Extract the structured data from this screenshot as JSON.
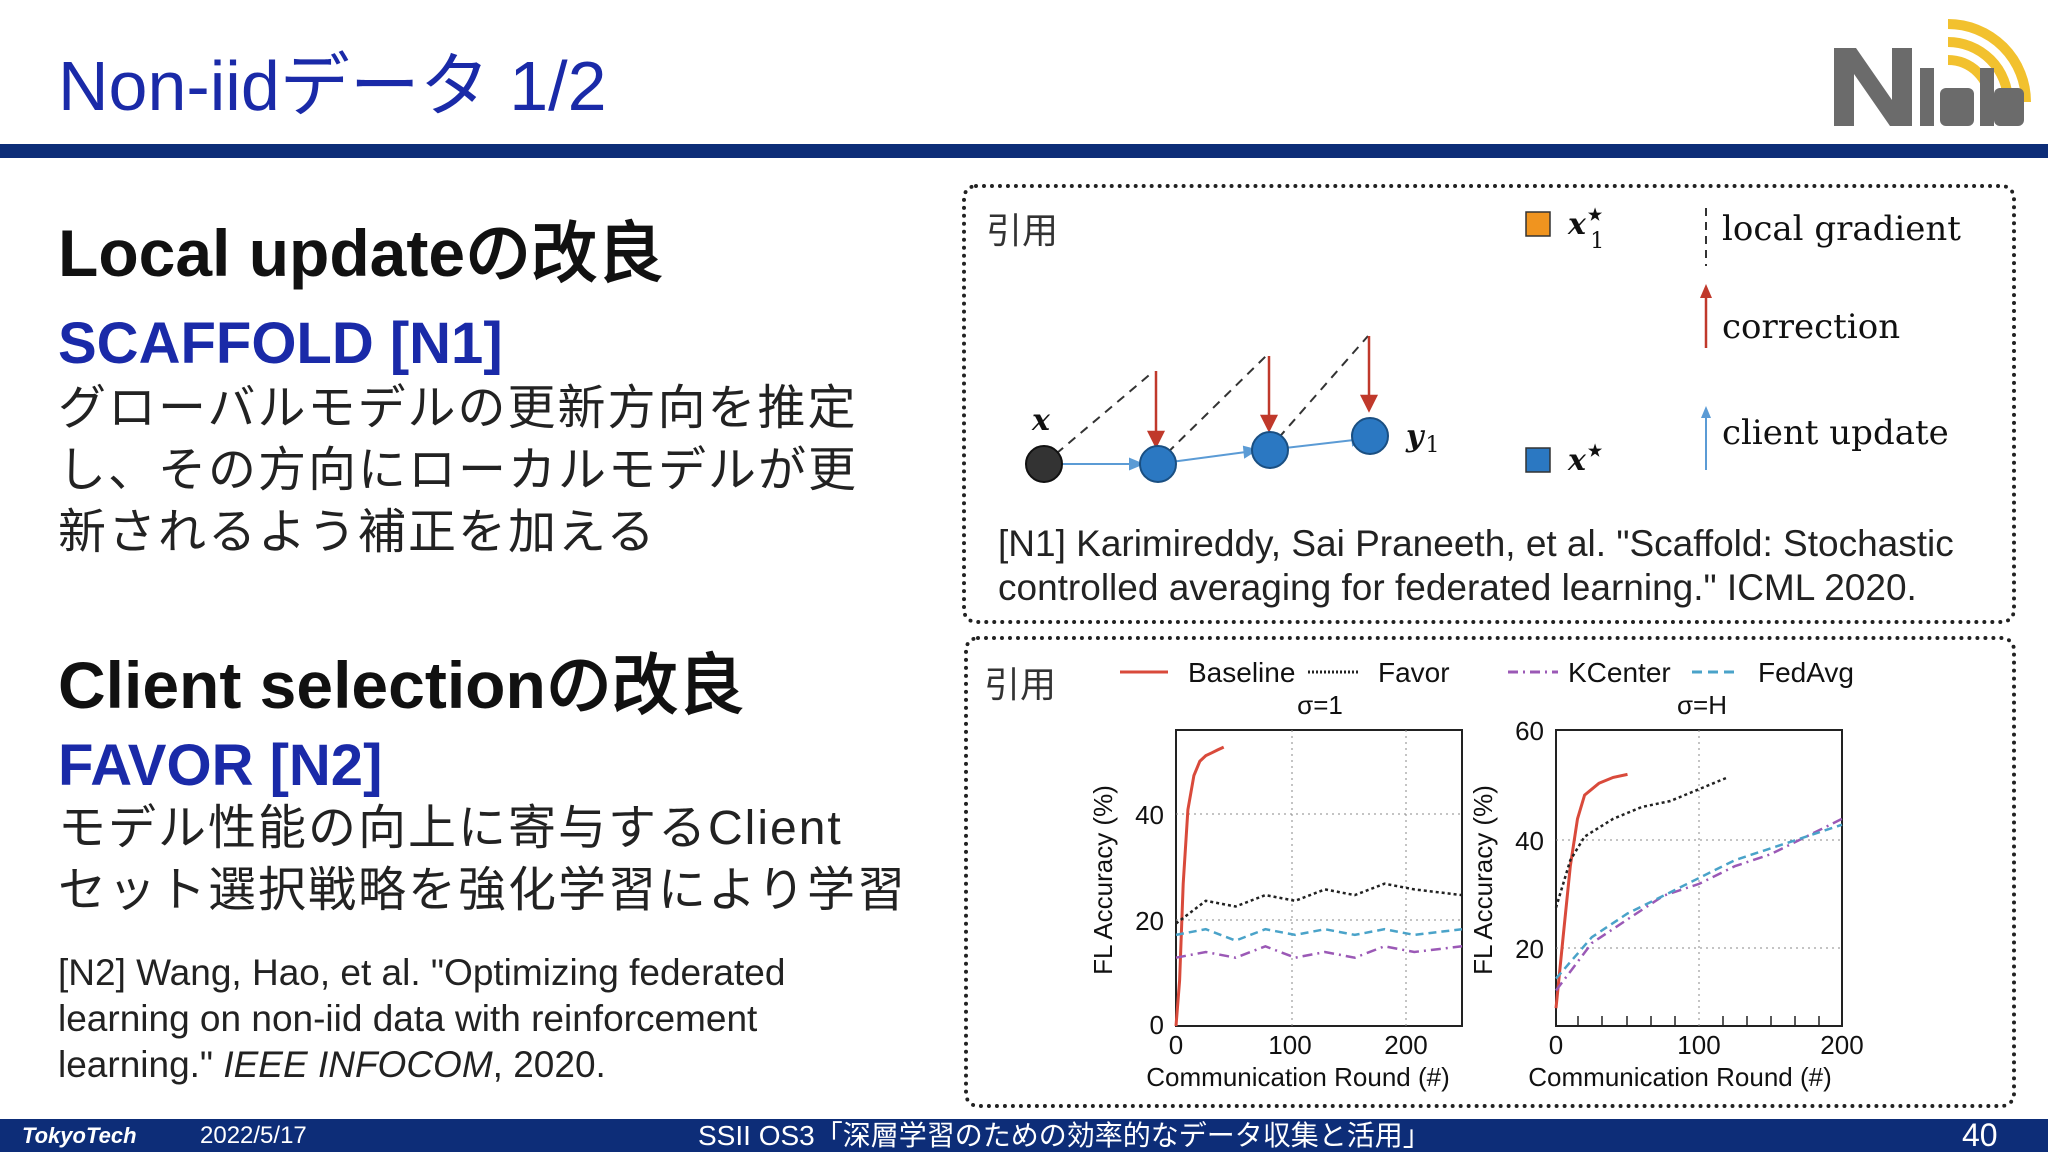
{
  "slide": {
    "title": "Non-iidデータ 1/2",
    "logo_text": "N lab"
  },
  "left": {
    "section1_heading": "Local updateの改良",
    "method1_title": "SCAFFOLD [N1]",
    "method1_desc": [
      "グローバルモデルの更新方向を推定",
      "し、その方向にローカルモデルが更",
      "新されるよう補正を加える"
    ],
    "section2_heading": "Client selectionの改良",
    "method2_title": "FAVOR [N2]",
    "method2_desc": [
      "モデル性能の向上に寄与するClient",
      "セット選択戦略を強化学習により学習"
    ],
    "ref_n2": [
      "[N2] Wang, Hao, et al. \"Optimizing federated",
      "learning on non-iid data with reinforcement"
    ],
    "ref_n2_line3_pre": "learning.\" ",
    "ref_n2_line3_venue": "IEEE INFOCOM",
    "ref_n2_line3_post": ", 2020."
  },
  "figure1": {
    "quote_label": "引用",
    "node_x": "x",
    "node_y1": "y",
    "node_y1_sub": "1",
    "legend": {
      "x1_star": "x",
      "x1_sub": "1",
      "x_star": "x",
      "star": "★",
      "local_gradient": "local gradient",
      "correction": "correction",
      "client_update": "client update"
    },
    "colors": {
      "orange": "#f0941f",
      "blue": "#2b78c2",
      "red": "#c0392b",
      "dark": "#333333"
    },
    "ref_n1": [
      "[N1] Karimireddy, Sai Praneeth, et al. \"Scaffold: Stochastic",
      "controlled averaging for federated learning.\" ICML 2020."
    ]
  },
  "figure2": {
    "quote_label": "引用",
    "legend": [
      "Baseline",
      "Favor",
      "KCenter",
      "FedAvg"
    ],
    "panel_left": {
      "title": "σ=1",
      "ylabel": "FL Accuracy (%)",
      "xlabel": "Communication Round (#)",
      "yticks": [
        "0",
        "20",
        "40"
      ],
      "xticks": [
        "0",
        "100",
        "200"
      ]
    },
    "panel_right": {
      "title": "σ=H",
      "ylabel": "FL Accuracy (%)",
      "xlabel": "Communication Round (#)",
      "yticks": [
        "20",
        "40",
        "60"
      ],
      "xticks": [
        "0",
        "100",
        "200"
      ]
    }
  },
  "chart_data": [
    {
      "type": "line",
      "title": "σ=1",
      "xlabel": "Communication Round (#)",
      "ylabel": "FL Accuracy (%)",
      "xlim": [
        0,
        240
      ],
      "ylim": [
        0,
        52
      ],
      "series": [
        {
          "name": "Baseline",
          "x": [
            0,
            3,
            6,
            10,
            15,
            20,
            25,
            30,
            35,
            40
          ],
          "y": [
            0,
            8,
            25,
            38,
            44,
            46.5,
            47.5,
            48,
            48.5,
            49
          ]
        },
        {
          "name": "Favor",
          "x": [
            0,
            25,
            50,
            75,
            100,
            125,
            150,
            175,
            200,
            240
          ],
          "y": [
            18,
            22,
            21,
            23,
            22,
            24,
            23,
            25,
            24,
            23
          ]
        },
        {
          "name": "KCenter",
          "x": [
            0,
            25,
            50,
            75,
            100,
            125,
            150,
            175,
            200,
            240
          ],
          "y": [
            12,
            13,
            12,
            14,
            12,
            13,
            12,
            14,
            13,
            14
          ]
        },
        {
          "name": "FedAvg",
          "x": [
            0,
            25,
            50,
            75,
            100,
            125,
            150,
            175,
            200,
            240
          ],
          "y": [
            16,
            17,
            15,
            17,
            16,
            17,
            16,
            17,
            16,
            17
          ]
        }
      ],
      "grid": true
    },
    {
      "type": "line",
      "title": "σ=H",
      "xlabel": "Communication Round (#)",
      "ylabel": "FL Accuracy (%)",
      "xlim": [
        0,
        200
      ],
      "ylim": [
        10,
        60
      ],
      "series": [
        {
          "name": "Baseline",
          "x": [
            0,
            5,
            10,
            15,
            20,
            30,
            40,
            50
          ],
          "y": [
            13,
            25,
            37,
            45,
            49,
            51,
            52,
            52.5
          ]
        },
        {
          "name": "Favor",
          "x": [
            0,
            10,
            20,
            40,
            60,
            80,
            100,
            120
          ],
          "y": [
            30,
            38,
            42,
            45,
            47,
            48,
            50,
            52
          ]
        },
        {
          "name": "KCenter",
          "x": [
            0,
            25,
            50,
            75,
            100,
            125,
            150,
            175,
            200
          ],
          "y": [
            16,
            24,
            28,
            32,
            34,
            37,
            39,
            42,
            45
          ]
        },
        {
          "name": "FedAvg",
          "x": [
            0,
            25,
            50,
            75,
            100,
            125,
            150,
            175,
            200
          ],
          "y": [
            18,
            25,
            29,
            32,
            35,
            38,
            40,
            42,
            44
          ]
        }
      ],
      "grid": true
    }
  ],
  "footer": {
    "org": "TokyoTech",
    "date": "2022/5/17",
    "event": "SSII OS3「深層学習のための効率的なデータ収集と活用」",
    "page": "40"
  }
}
